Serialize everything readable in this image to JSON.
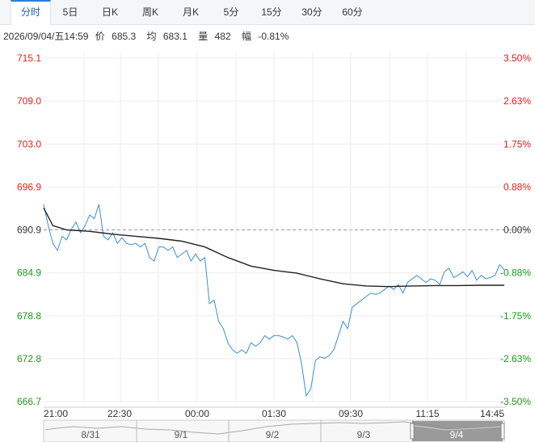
{
  "tabs": [
    {
      "label": "分时",
      "active": true
    },
    {
      "label": "5日"
    },
    {
      "label": "日K"
    },
    {
      "label": "周K"
    },
    {
      "label": "月K"
    },
    {
      "label": "5分"
    },
    {
      "label": "15分"
    },
    {
      "label": "30分"
    },
    {
      "label": "60分"
    }
  ],
  "info": {
    "datetime": "2026/09/04/五14:59",
    "price_label": "价",
    "price": "685.3",
    "avg_label": "均",
    "avg": "683.1",
    "volume_label": "量",
    "volume": "482",
    "change_label": "幅",
    "change": "-0.81%"
  },
  "colors": {
    "up": "#e02020",
    "down": "#1a9a1a",
    "neutral": "#333333",
    "price_line": "#3d8fd0",
    "avg_line": "#222222",
    "grid": "#eeeeee",
    "ref_line": "#999999"
  },
  "chart_data": {
    "type": "line",
    "left_axis": [
      "715.1",
      "709.0",
      "703.0",
      "696.9",
      "690.9",
      "684.9",
      "678.8",
      "672.8",
      "666.7"
    ],
    "right_axis": [
      "3.50%",
      "2.63%",
      "1.75%",
      "0.88%",
      "0.00%",
      "-0.88%",
      "-1.75%",
      "-2.63%",
      "-3.50%"
    ],
    "ylim": [
      666.7,
      715.1
    ],
    "prev_close": 690.9,
    "x_ticks": [
      "21:00",
      "22:30",
      "00:00",
      "01:30",
      "09:30",
      "11:15",
      "14:45"
    ],
    "navigator_dates": [
      "8/31",
      "9/1",
      "9/2",
      "9/3",
      "9/4"
    ],
    "series": [
      {
        "role": "price",
        "points": [
          [
            0,
            694.5
          ],
          [
            0.01,
            691.5
          ],
          [
            0.02,
            689
          ],
          [
            0.03,
            688
          ],
          [
            0.04,
            690
          ],
          [
            0.05,
            689.5
          ],
          [
            0.06,
            691
          ],
          [
            0.07,
            692
          ],
          [
            0.08,
            690.5
          ],
          [
            0.09,
            691.5
          ],
          [
            0.1,
            693
          ],
          [
            0.11,
            692.5
          ],
          [
            0.12,
            694.5
          ],
          [
            0.13,
            690
          ],
          [
            0.14,
            689.5
          ],
          [
            0.15,
            690.5
          ],
          [
            0.16,
            689
          ],
          [
            0.17,
            689.8
          ],
          [
            0.18,
            689
          ],
          [
            0.19,
            688.8
          ],
          [
            0.2,
            689
          ],
          [
            0.21,
            688.5
          ],
          [
            0.22,
            689
          ],
          [
            0.23,
            687
          ],
          [
            0.24,
            686.5
          ],
          [
            0.25,
            688.5
          ],
          [
            0.26,
            688.5
          ],
          [
            0.27,
            688
          ],
          [
            0.28,
            688.5
          ],
          [
            0.29,
            687
          ],
          [
            0.3,
            687.5
          ],
          [
            0.31,
            688
          ],
          [
            0.32,
            686.5
          ],
          [
            0.33,
            687.5
          ],
          [
            0.34,
            686.5
          ],
          [
            0.35,
            687
          ],
          [
            0.36,
            680.5
          ],
          [
            0.37,
            681
          ],
          [
            0.38,
            678
          ],
          [
            0.39,
            677
          ],
          [
            0.4,
            675
          ],
          [
            0.41,
            674
          ],
          [
            0.42,
            673.5
          ],
          [
            0.43,
            674
          ],
          [
            0.44,
            673.5
          ],
          [
            0.45,
            675
          ],
          [
            0.46,
            674.5
          ],
          [
            0.47,
            675
          ],
          [
            0.48,
            676
          ],
          [
            0.49,
            675.5
          ],
          [
            0.5,
            676
          ],
          [
            0.51,
            676
          ],
          [
            0.52,
            675.8
          ],
          [
            0.53,
            675.5
          ],
          [
            0.54,
            676
          ],
          [
            0.55,
            675
          ],
          [
            0.56,
            672
          ],
          [
            0.57,
            667.5
          ],
          [
            0.58,
            668.5
          ],
          [
            0.59,
            672.5
          ],
          [
            0.6,
            673
          ],
          [
            0.61,
            672.8
          ],
          [
            0.62,
            673.2
          ],
          [
            0.63,
            674
          ],
          [
            0.64,
            676
          ],
          [
            0.65,
            678
          ],
          [
            0.66,
            677
          ],
          [
            0.67,
            680
          ],
          [
            0.68,
            680.5
          ],
          [
            0.69,
            681
          ],
          [
            0.7,
            681.5
          ],
          [
            0.71,
            682
          ],
          [
            0.72,
            681.8
          ],
          [
            0.73,
            682
          ],
          [
            0.74,
            682.5
          ],
          [
            0.75,
            683
          ],
          [
            0.76,
            682.5
          ],
          [
            0.77,
            683.2
          ],
          [
            0.78,
            682
          ],
          [
            0.79,
            683.5
          ],
          [
            0.8,
            684
          ],
          [
            0.81,
            684.5
          ],
          [
            0.82,
            684
          ],
          [
            0.83,
            683.5
          ],
          [
            0.84,
            684
          ],
          [
            0.85,
            683.8
          ],
          [
            0.86,
            683.2
          ],
          [
            0.87,
            685
          ],
          [
            0.88,
            685.5
          ],
          [
            0.89,
            684.2
          ],
          [
            0.9,
            684.5
          ],
          [
            0.91,
            685
          ],
          [
            0.92,
            684.3
          ],
          [
            0.93,
            685.2
          ],
          [
            0.94,
            683.8
          ],
          [
            0.95,
            684.5
          ],
          [
            0.96,
            684
          ],
          [
            0.97,
            684.2
          ],
          [
            0.98,
            684.5
          ],
          [
            0.99,
            686
          ],
          [
            1,
            685.3
          ]
        ]
      },
      {
        "role": "average",
        "points": [
          [
            0,
            694
          ],
          [
            0.02,
            691.5
          ],
          [
            0.05,
            690.9
          ],
          [
            0.1,
            690.7
          ],
          [
            0.15,
            690.3
          ],
          [
            0.2,
            690.0
          ],
          [
            0.25,
            689.7
          ],
          [
            0.3,
            689.3
          ],
          [
            0.35,
            688.5
          ],
          [
            0.4,
            687.0
          ],
          [
            0.45,
            685.8
          ],
          [
            0.5,
            685.2
          ],
          [
            0.55,
            684.8
          ],
          [
            0.6,
            684.0
          ],
          [
            0.65,
            683.3
          ],
          [
            0.7,
            683.0
          ],
          [
            0.75,
            682.9
          ],
          [
            0.8,
            683.0
          ],
          [
            0.85,
            683.05
          ],
          [
            0.9,
            683.05
          ],
          [
            0.95,
            683.1
          ],
          [
            1,
            683.1
          ]
        ]
      }
    ]
  }
}
